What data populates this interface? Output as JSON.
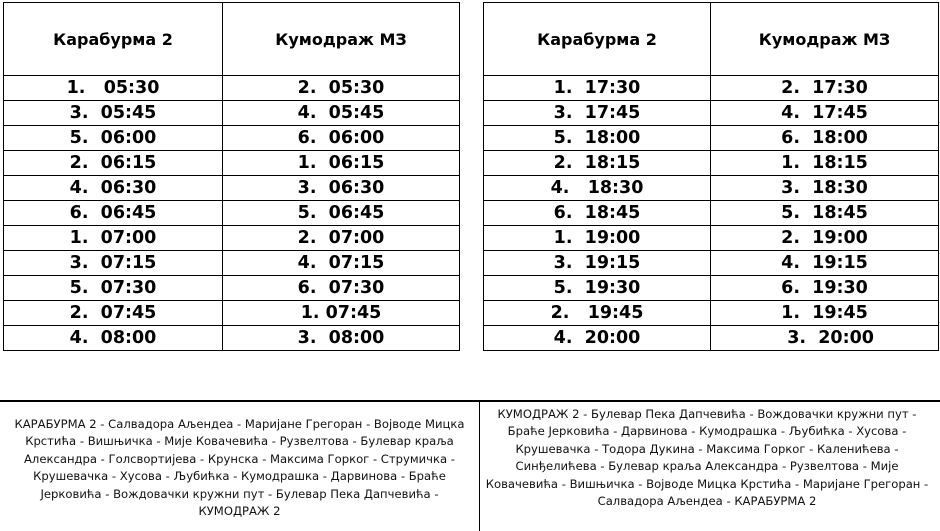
{
  "morning": {
    "headers": [
      "Карабурма 2",
      "Кумодраж МЗ"
    ],
    "rows": [
      [
        "1.   05:30",
        "2.  05:30"
      ],
      [
        "3.  05:45",
        "4.  05:45"
      ],
      [
        "5.  06:00",
        "6.  06:00"
      ],
      [
        "2.  06:15",
        "1.  06:15"
      ],
      [
        "4.  06:30",
        "3.  06:30"
      ],
      [
        "6.  06:45",
        "5.  06:45"
      ],
      [
        "1.  07:00",
        "2.  07:00"
      ],
      [
        "3.  07:15",
        "4.  07:15"
      ],
      [
        "5.  07:30",
        "6.  07:30"
      ],
      [
        "2.  07:45",
        "1. 07:45"
      ],
      [
        "4.  08:00",
        "3.  08:00"
      ]
    ]
  },
  "evening": {
    "headers": [
      "Карабурма 2",
      "Кумодраж МЗ"
    ],
    "rows": [
      [
        "1.  17:30",
        "2.  17:30"
      ],
      [
        "3.  17:45",
        "4.  17:45"
      ],
      [
        "5.  18:00",
        "6.  18:00"
      ],
      [
        "2.  18:15",
        "1.  18:15"
      ],
      [
        "4.   18:30",
        "3.  18:30"
      ],
      [
        "6.  18:45",
        "5.  18:45"
      ],
      [
        "1.  19:00",
        "2.  19:00"
      ],
      [
        "3.  19:15",
        "4.  19:15"
      ],
      [
        "5.  19:30",
        "6.  19:30"
      ],
      [
        "2.   19:45",
        "1.  19:45"
      ],
      [
        "4.  20:00",
        "  3.  20:00"
      ]
    ]
  },
  "routes": {
    "karaburma_to_kumodraz": "КАРАБУРМА 2 - Салвадора Аљендеа - Маријане Грегоран - Војводе Мицка Крстића - Вишњичка - Мије Ковачевића - Рузвелтова - Булевар краља Александра - Голсвортијева - Крунска - Максима Горког - Струмичка - Крушевачка  - Хусова - Љубићка - Кумодрашка - Дарвинова - Браће Јерковића - Вождовачки кружни пут - Булевар Пека Дапчевића - КУМОДРАЖ 2",
    "kumodraz_to_karaburma": "КУМОДРАЖ 2 - Булевар Пека Дапчевића - Вождовачки кружни пут - Браће Јерковића - Дарвинова - Кумодрашка - Љубићка - Хусова - Крушевачка - Тодора Дукина - Максима Горког - Каленићева - Синђелићева -  Булевар краља Александра - Рузвелтова - Мије Ковачевића - Вишњичка - Војводе Мицка Крстића - Маријане Грегоран - Салвадора Аљендеа  - КАРАБУРМА 2"
  }
}
